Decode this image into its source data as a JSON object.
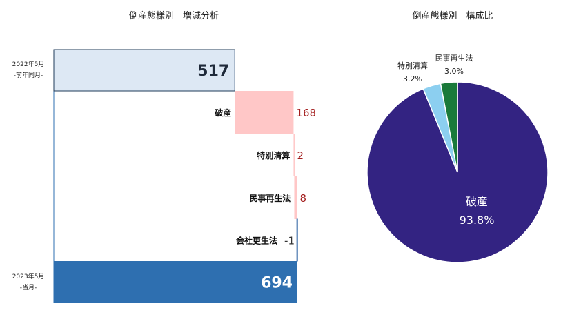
{
  "chart_data": [
    {
      "type": "bar",
      "subtype": "waterfall",
      "title": "倒産態様別　増減分析",
      "start": {
        "label": "2022年5月",
        "sublabel": "-前年同月-",
        "value": 517
      },
      "steps": [
        {
          "label": "破産",
          "value": 168,
          "display": "168"
        },
        {
          "label": "特別清算",
          "value": 2,
          "display": "2"
        },
        {
          "label": "民事再生法",
          "value": 8,
          "display": "8"
        },
        {
          "label": "会社更生法",
          "value": -1,
          "display": "-1"
        }
      ],
      "end": {
        "label": "2023年5月",
        "sublabel": "-当月-",
        "value": 694
      },
      "colors": {
        "start_fill": "#dde8f4",
        "start_stroke": "#1f3b5a",
        "increase": "#ffc7c7",
        "decrease": "#ffffff",
        "decrease_stroke": "#6f93bf",
        "end_fill": "#2e6fb0",
        "increase_text": "#a31d1d",
        "decrease_text": "#333333",
        "frame": "#2e6fb0"
      }
    },
    {
      "type": "pie",
      "title": "倒産態様別　構成比",
      "slices": [
        {
          "label": "破産",
          "value": 93.8,
          "display": "93.8%",
          "color": "#332382"
        },
        {
          "label": "特別清算",
          "value": 3.2,
          "display": "3.2%",
          "color": "#8ccff0"
        },
        {
          "label": "民事再生法",
          "value": 3.0,
          "display": "3.0%",
          "color": "#1a7a3a"
        }
      ]
    }
  ]
}
